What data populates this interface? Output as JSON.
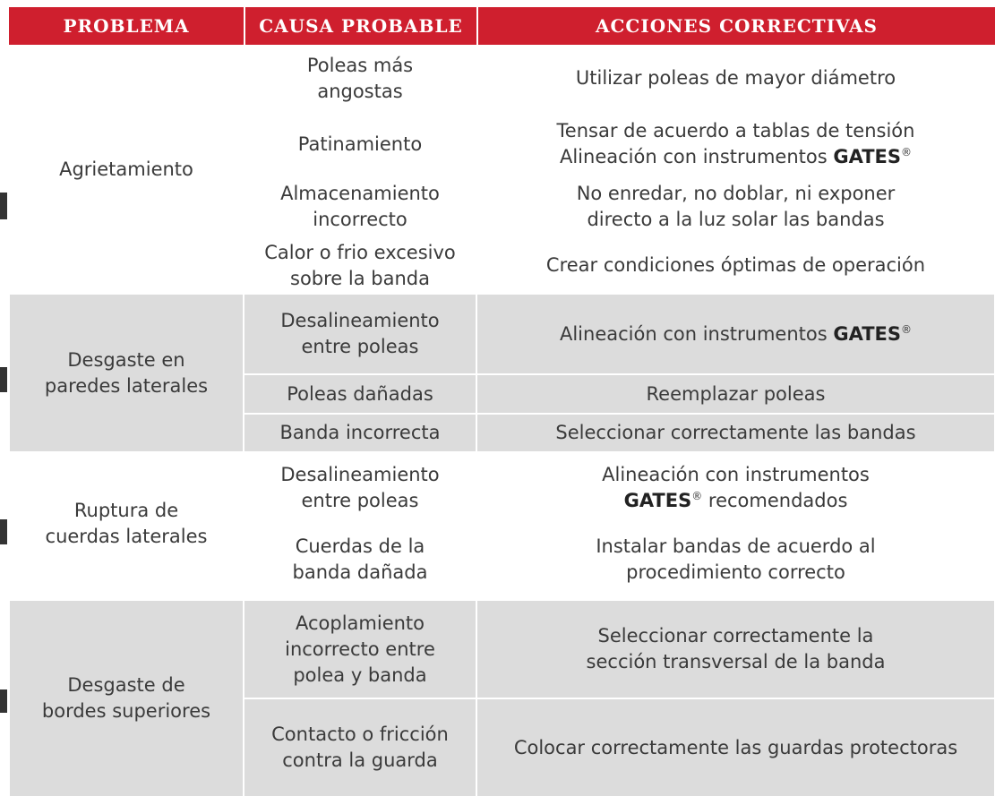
{
  "header": [
    "PROBLEMA",
    "CAUSA PROBABLE",
    "ACCIONES CORRECTIVAS"
  ],
  "groups": [
    {
      "problem": [
        "Agrietamiento"
      ],
      "rows": [
        {
          "cause": [
            "Poleas  más",
            "angostas"
          ],
          "action": [
            [
              "Utilizar poleas de mayor diámetro"
            ]
          ]
        },
        {
          "cause": [
            "Patinamiento"
          ],
          "action": [
            [
              "Tensar de acuerdo a tablas de tensión"
            ],
            [
              "Alineación con instrumentos ",
              {
                "text": "GATES",
                "style": "brand"
              },
              {
                "text": "®",
                "style": "sup"
              }
            ]
          ]
        },
        {
          "cause": [
            "Almacenamiento",
            "incorrecto"
          ],
          "action": [
            [
              "No enredar, no doblar, ni exponer"
            ],
            [
              "directo a la luz solar las bandas"
            ]
          ]
        },
        {
          "cause": [
            "Calor o frio excesivo",
            "sobre la banda"
          ],
          "action": [
            [
              "Crear condiciones óptimas de operación"
            ]
          ]
        }
      ]
    },
    {
      "problem": [
        "Desgaste en",
        "paredes laterales"
      ],
      "rows": [
        {
          "cause": [
            "Desalineamiento",
            "entre poleas"
          ],
          "action": [
            [
              "Alineación con instrumentos ",
              {
                "text": "GATES",
                "style": "brand"
              },
              {
                "text": "®",
                "style": "sup"
              }
            ]
          ]
        },
        {
          "cause": [
            "Poleas dañadas"
          ],
          "action": [
            [
              "Reemplazar poleas"
            ]
          ]
        },
        {
          "cause": [
            "Banda incorrecta"
          ],
          "action": [
            [
              "Seleccionar correctamente las bandas"
            ]
          ]
        }
      ]
    },
    {
      "problem": [
        "Ruptura de",
        "cuerdas laterales"
      ],
      "rows": [
        {
          "cause": [
            "Desalineamiento",
            "entre poleas"
          ],
          "action": [
            [
              "Alineación con instrumentos"
            ],
            [
              {
                "text": "GATES",
                "style": "brand"
              },
              {
                "text": "®",
                "style": "sup"
              },
              " recomendados"
            ]
          ]
        },
        {
          "cause": [
            "Cuerdas de la",
            "banda dañada"
          ],
          "action": [
            [
              "Instalar bandas de acuerdo al"
            ],
            [
              "procedimiento correcto"
            ]
          ]
        }
      ]
    },
    {
      "problem": [
        "Desgaste de",
        "bordes superiores"
      ],
      "rows": [
        {
          "cause": [
            "Acoplamiento",
            "incorrecto entre",
            "polea y banda"
          ],
          "action": [
            [
              "Seleccionar correctamente la"
            ],
            [
              "sección transversal de la banda"
            ]
          ]
        },
        {
          "cause": [
            "Contacto o fricción",
            "contra la guarda"
          ],
          "action": [
            [
              "Colocar correctamente las guardas protectoras"
            ]
          ]
        }
      ]
    }
  ]
}
